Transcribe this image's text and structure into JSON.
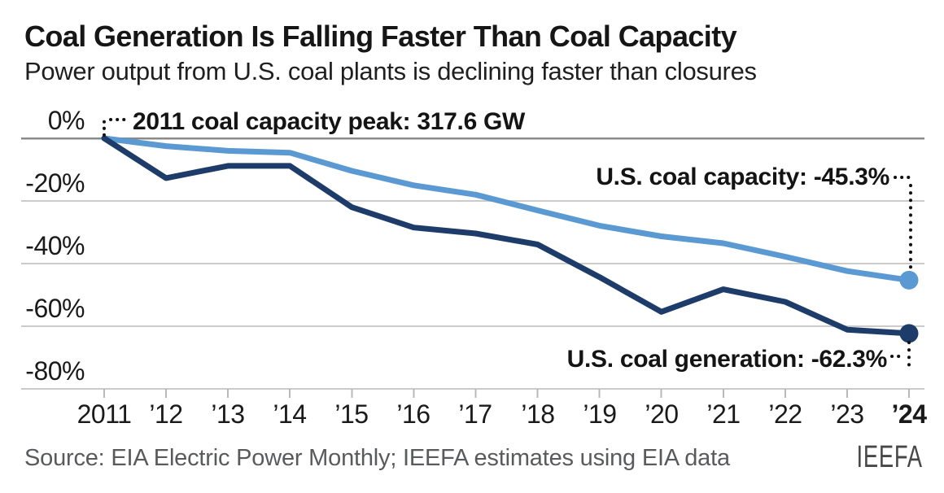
{
  "header": {
    "title": "Coal Generation Is Falling Faster Than Coal Capacity",
    "subtitle": "Power output from U.S. coal plants is declining faster than closures"
  },
  "chart_data": {
    "type": "line",
    "title": "Coal Generation Is Falling Faster Than Coal Capacity",
    "subtitle": "Power output from U.S. coal plants is declining faster than closures",
    "x": [
      2011,
      2012,
      2013,
      2014,
      2015,
      2016,
      2017,
      2018,
      2019,
      2020,
      2021,
      2022,
      2023,
      2024
    ],
    "categories": [
      "2011",
      "’12",
      "’13",
      "’14",
      "’15",
      "’16",
      "’17",
      "’18",
      "’19",
      "’20",
      "’21",
      "’22",
      "’23",
      "’24"
    ],
    "last_category_bold": true,
    "series": [
      {
        "name": "U.S. coal capacity",
        "color": "#5b99d2",
        "values": [
          0,
          -2.5,
          -4.0,
          -4.6,
          -10.4,
          -15.0,
          -18.0,
          -23.0,
          -27.9,
          -31.3,
          -33.5,
          -37.8,
          -42.4,
          -45.3
        ],
        "end_dot": true
      },
      {
        "name": "U.S. coal generation",
        "color": "#1d3c69",
        "values": [
          0,
          -12.7,
          -8.8,
          -8.8,
          -22.0,
          -28.5,
          -30.4,
          -33.9,
          -44.3,
          -55.4,
          -48.2,
          -52.2,
          -61.1,
          -62.3
        ],
        "end_dot": true
      }
    ],
    "ylim": [
      -80,
      0
    ],
    "y_ticks": [
      {
        "label": "0%",
        "value": 0
      },
      {
        "label": "-20%",
        "value": -20
      },
      {
        "label": "-40%",
        "value": -40
      },
      {
        "label": "-60%",
        "value": -60
      },
      {
        "label": "-80%",
        "value": -80
      }
    ],
    "grid": "horizontal",
    "legend_position": "none",
    "annotations": [
      "2011 coal capacity peak: 317.6 GW",
      "U.S. coal capacity: -45.3%",
      "U.S. coal generation: -62.3%"
    ]
  },
  "annotations": {
    "peak": "2011 coal capacity peak: 317.6 GW",
    "capacity_label": "U.S. coal capacity:",
    "capacity_value": "-45.3%",
    "generation_label": "U.S. coal generation:",
    "generation_value": "-62.3%"
  },
  "footer": {
    "source": "Source: EIA Electric Power Monthly; IEEFA estimates using EIA data",
    "logo": "IEEFA"
  },
  "colors": {
    "capacity_line": "#5b99d2",
    "generation_line": "#1d3c69",
    "grid_line": "#cbcbcb",
    "zero_line": "#8a8a8a",
    "tick_mark": "#b9b9b9",
    "leader_dots": "#111111",
    "text": "#1a1a1a",
    "source_text": "#595a5c"
  }
}
